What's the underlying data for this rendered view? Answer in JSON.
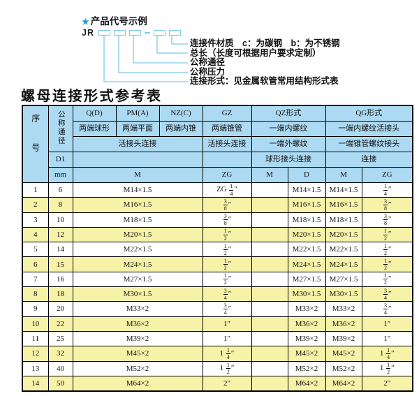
{
  "colors": {
    "header_blue": "#ACDAF2",
    "row_yellow": "#F6F2A8",
    "line_blue": "#7EC9E8",
    "star_blue": "#1E9CD7"
  },
  "diagram": {
    "star": "★",
    "heading": "产品代号示例",
    "code_prefix": "JR",
    "labels": [
      "连接件材质　c：为碳钢　b：为不锈钢",
      "总长（长度可根据用户要求定制）",
      "公称通径",
      "公称压力",
      "连接形式：见金属软管常用结构形式表"
    ]
  },
  "table": {
    "title": "螺母连接形式参考表",
    "header": {
      "xuhao": "序号",
      "tongjing": "公称通径",
      "d1": "D1",
      "mm": "mm",
      "q_code": "Q(D)",
      "q_desc": "两端球形",
      "pm_code": "PM(A)",
      "pm_desc": "两端平面",
      "nz_code": "NZ(C)",
      "nz_desc": "两端内锥",
      "union_conn": "活接头连接",
      "m_unit": "M",
      "gz_code": "GZ",
      "gz_desc": "两端锥管",
      "gz_conn": "活接头连接",
      "gz_unit": "ZG",
      "qz_code": "QZ形式",
      "qz_r2": "一端内螺纹",
      "qz_r3": "一端外螺纹",
      "qz_r4": "球形接头连接",
      "qz_u1": "M",
      "qz_u2": "D",
      "qg_code": "QG形式",
      "qg_r2": "一端内螺纹活接头",
      "qg_r3": "一端锥管螺纹接头",
      "qg_r4": "连接",
      "qg_u1": "M",
      "qg_u2": "ZG"
    },
    "rows": [
      {
        "no": "1",
        "mm": "6",
        "m": "M14×1.5",
        "gz": "ZG 1/4″",
        "qz_m": "",
        "qz_d": "M14×1.5",
        "qg_m": "M14×1.5",
        "qg_zg": "1/4″"
      },
      {
        "no": "2",
        "mm": "8",
        "m": "M16×1.5",
        "gz": "3/8″",
        "qz_m": "",
        "qz_d": "M16×1.5",
        "qg_m": "M16×1.5",
        "qg_zg": "3/8″"
      },
      {
        "no": "3",
        "mm": "10",
        "m": "M18×1.5",
        "gz": "3/8″",
        "qz_m": "",
        "qz_d": "M18×1.5",
        "qg_m": "M18×1.5",
        "qg_zg": "3/8″"
      },
      {
        "no": "4",
        "mm": "12",
        "m": "M20×1.5",
        "gz": "1/2″",
        "qz_m": "",
        "qz_d": "M20×1.5",
        "qg_m": "M20×1.5",
        "qg_zg": "1/2″"
      },
      {
        "no": "5",
        "mm": "14",
        "m": "M22×1.5",
        "gz": "1/2″",
        "qz_m": "",
        "qz_d": "M22×1.5",
        "qg_m": "M22×1.5",
        "qg_zg": "1/2″"
      },
      {
        "no": "6",
        "mm": "15",
        "m": "M24×1.5",
        "gz": "1/2″",
        "qz_m": "",
        "qz_d": "M24×1.5",
        "qg_m": "M24×1.5",
        "qg_zg": "1/2″"
      },
      {
        "no": "7",
        "mm": "16",
        "m": "M27×1.5",
        "gz": "1/2″",
        "qz_m": "",
        "qz_d": "M27×1.5",
        "qg_m": "M27×1.5",
        "qg_zg": "1/2″"
      },
      {
        "no": "8",
        "mm": "18",
        "m": "M30×1.5",
        "gz": "3/4″",
        "qz_m": "",
        "qz_d": "M30×1.5",
        "qg_m": "M30×1.5",
        "qg_zg": "3/4″"
      },
      {
        "no": "9",
        "mm": "20",
        "m": "M33×2",
        "gz": "3/4″",
        "qz_m": "",
        "qz_d": "M33×2",
        "qg_m": "M33×2",
        "qg_zg": "3/4″"
      },
      {
        "no": "10",
        "mm": "22",
        "m": "M36×2",
        "gz": "1″",
        "qz_m": "",
        "qz_d": "M36×2",
        "qg_m": "M36×2",
        "qg_zg": "1″"
      },
      {
        "no": "11",
        "mm": "25",
        "m": "M39×2",
        "gz": "1″",
        "qz_m": "",
        "qz_d": "M39×2",
        "qg_m": "M39×2",
        "qg_zg": "1″"
      },
      {
        "no": "12",
        "mm": "32",
        "m": "M45×2",
        "gz": "1 1/4″",
        "qz_m": "",
        "qz_d": "M45×2",
        "qg_m": "M45×2",
        "qg_zg": "1 1/4″"
      },
      {
        "no": "13",
        "mm": "40",
        "m": "M52×2",
        "gz": "1 1/2″",
        "qz_m": "",
        "qz_d": "M52×2",
        "qg_m": "M52×2",
        "qg_zg": "1 1/2″"
      },
      {
        "no": "14",
        "mm": "50",
        "m": "M64×2",
        "gz": "2″",
        "qz_m": "",
        "qz_d": "M64×2",
        "qg_m": "M64×2",
        "qg_zg": "2″"
      }
    ]
  }
}
